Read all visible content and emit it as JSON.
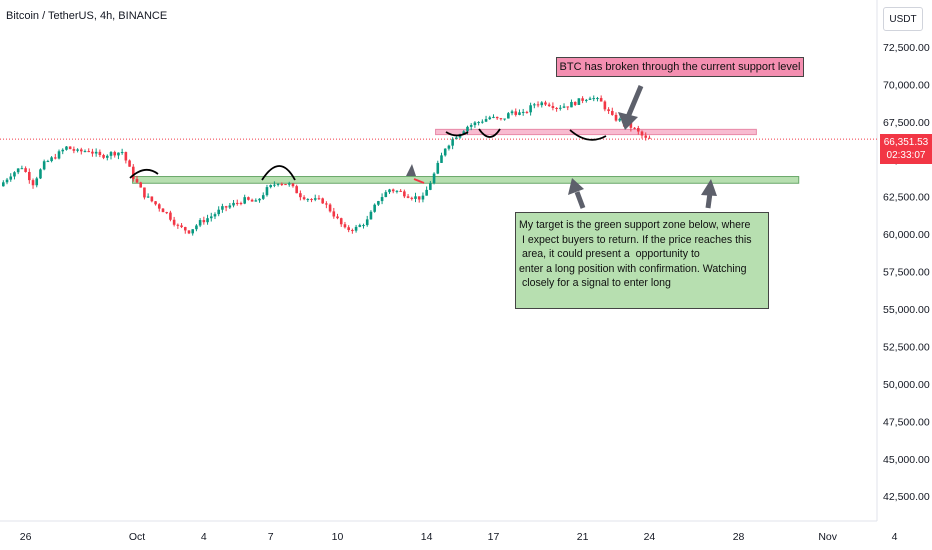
{
  "header": {
    "symbol": "Bitcoin / TetherUS, 4h, BINANCE"
  },
  "price_scale": {
    "unit": "USDT",
    "current_price": "66,351.53",
    "countdown": "02:33:07"
  },
  "annotations": {
    "pink_note": "BTC has broken through the current support level",
    "green_note_lines": [
      "My target is the green support zone below, where",
      " I expect buyers to return. If the price reaches this",
      " area, it could present a  opportunity to",
      "enter a long position with confirmation. Watching",
      " closely for a signal to enter long"
    ]
  },
  "colors": {
    "up": "#089981",
    "down": "#f23645",
    "pink_zone": "#f8bbd0",
    "green_zone": "#b7dfb0",
    "last_price_line": "#f23645",
    "arrow": "#5d606b"
  },
  "chart_data": {
    "type": "candlestick",
    "timeframe": "4h",
    "exchange": "BINANCE",
    "y_ticks": [
      "72,500.00",
      "70,000.00",
      "67,500.00",
      "65,000.00",
      "62,500.00",
      "60,000.00",
      "57,500.00",
      "55,000.00",
      "52,500.00",
      "50,000.00",
      "47,500.00",
      "45,000.00",
      "42,500.00"
    ],
    "y_tick_values": [
      72500,
      70000,
      67500,
      65000,
      62500,
      60000,
      57500,
      55000,
      52500,
      50000,
      47500,
      45000,
      42500
    ],
    "x_ticks": [
      "26",
      "Oct",
      "4",
      "7",
      "10",
      "14",
      "17",
      "21",
      "24",
      "28",
      "Nov",
      "4"
    ],
    "x_tick_days": [
      -5,
      0,
      3,
      6,
      9,
      13,
      16,
      20,
      23,
      27,
      31,
      34
    ],
    "last_price": 66351.53,
    "zones": [
      {
        "name": "resistance-zone",
        "from_day": 13.4,
        "to_day": 27.8,
        "low": 66650,
        "high": 67000,
        "color": "pink"
      },
      {
        "name": "support-zone",
        "from_day": -0.2,
        "to_day": 29.7,
        "low": 63400,
        "high": 63850,
        "color": "green"
      }
    ],
    "path_points": [
      [
        -6.0,
        63200
      ],
      [
        -5.5,
        64000
      ],
      [
        -5.0,
        64500
      ],
      [
        -4.5,
        63400
      ],
      [
        -4.0,
        64700
      ],
      [
        -3.5,
        65200
      ],
      [
        -3.0,
        65800
      ],
      [
        -2.5,
        65500
      ],
      [
        -2.0,
        65600
      ],
      [
        -1.5,
        65200
      ],
      [
        -1.0,
        65400
      ],
      [
        -0.5,
        65500
      ],
      [
        0.0,
        63800
      ],
      [
        0.5,
        62600
      ],
      [
        1.0,
        62000
      ],
      [
        1.5,
        61400
      ],
      [
        2.0,
        60500
      ],
      [
        2.5,
        60200
      ],
      [
        3.0,
        60800
      ],
      [
        3.5,
        61200
      ],
      [
        4.0,
        61700
      ],
      [
        4.5,
        62000
      ],
      [
        5.0,
        62300
      ],
      [
        5.5,
        62100
      ],
      [
        6.0,
        63000
      ],
      [
        6.5,
        63500
      ],
      [
        7.0,
        63300
      ],
      [
        7.5,
        62600
      ],
      [
        8.0,
        62300
      ],
      [
        8.5,
        62200
      ],
      [
        9.0,
        61300
      ],
      [
        9.5,
        60300
      ],
      [
        10.0,
        60400
      ],
      [
        10.5,
        60900
      ],
      [
        11.0,
        62300
      ],
      [
        11.5,
        63000
      ],
      [
        12.0,
        62800
      ],
      [
        12.5,
        62500
      ],
      [
        13.0,
        62400
      ],
      [
        13.5,
        64000
      ],
      [
        14.0,
        65800
      ],
      [
        14.5,
        66600
      ],
      [
        15.0,
        67200
      ],
      [
        15.5,
        67500
      ],
      [
        16.0,
        67800
      ],
      [
        16.5,
        67600
      ],
      [
        17.0,
        68200
      ],
      [
        17.5,
        68000
      ],
      [
        18.0,
        68700
      ],
      [
        18.5,
        68800
      ],
      [
        19.0,
        68500
      ],
      [
        19.5,
        68600
      ],
      [
        20.0,
        68900
      ],
      [
        20.5,
        69200
      ],
      [
        21.0,
        68800
      ],
      [
        21.5,
        67800
      ],
      [
        22.0,
        67500
      ],
      [
        22.5,
        67000
      ],
      [
        23.0,
        66350
      ]
    ]
  }
}
